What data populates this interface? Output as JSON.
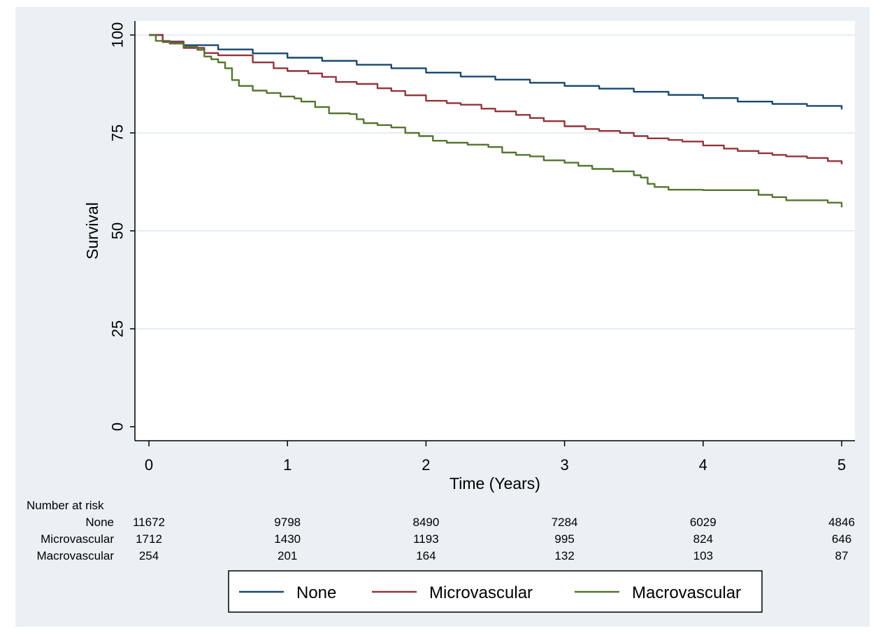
{
  "chart_data": {
    "type": "line",
    "step": true,
    "xlabel": "Time (Years)",
    "ylabel": "Survival",
    "xlim": [
      0,
      5
    ],
    "ylim": [
      0,
      100
    ],
    "x_ticks": [
      "0",
      "1",
      "2",
      "3",
      "4",
      "5"
    ],
    "y_ticks": [
      "0",
      "25",
      "50",
      "75",
      "100"
    ],
    "grid": "horizontal",
    "colors": {
      "outer_background": "#eaf0f3",
      "plot_background": "#ffffff",
      "gridline": "#e6eef2"
    },
    "series": [
      {
        "name": "None",
        "color": "#1a476f",
        "points": [
          [
            0,
            100
          ],
          [
            0.1,
            98.3
          ],
          [
            0.25,
            97.4
          ],
          [
            0.5,
            96.3
          ],
          [
            0.75,
            95.3
          ],
          [
            1,
            94.2
          ],
          [
            1.25,
            93.4
          ],
          [
            1.5,
            92.4
          ],
          [
            1.75,
            91.5
          ],
          [
            2,
            90.4
          ],
          [
            2.25,
            89.4
          ],
          [
            2.5,
            88.6
          ],
          [
            2.75,
            87.8
          ],
          [
            3,
            87.0
          ],
          [
            3.25,
            86.3
          ],
          [
            3.5,
            85.5
          ],
          [
            3.75,
            84.7
          ],
          [
            4,
            83.9
          ],
          [
            4.25,
            83.0
          ],
          [
            4.5,
            82.4
          ],
          [
            4.75,
            81.9
          ],
          [
            5,
            81.0
          ]
        ]
      },
      {
        "name": "Microvascular",
        "color": "#90353b",
        "points": [
          [
            0,
            100
          ],
          [
            0.1,
            98.2
          ],
          [
            0.25,
            96.7
          ],
          [
            0.4,
            95.4
          ],
          [
            0.5,
            94.8
          ],
          [
            0.75,
            93.0
          ],
          [
            0.9,
            91.5
          ],
          [
            1,
            90.8
          ],
          [
            1.15,
            90.2
          ],
          [
            1.25,
            89.3
          ],
          [
            1.35,
            88.0
          ],
          [
            1.5,
            87.5
          ],
          [
            1.65,
            86.4
          ],
          [
            1.75,
            85.7
          ],
          [
            1.85,
            84.6
          ],
          [
            2,
            83.2
          ],
          [
            2.15,
            82.6
          ],
          [
            2.25,
            82.2
          ],
          [
            2.4,
            81.2
          ],
          [
            2.5,
            80.5
          ],
          [
            2.65,
            79.6
          ],
          [
            2.75,
            78.8
          ],
          [
            2.85,
            78.0
          ],
          [
            3,
            76.7
          ],
          [
            3.15,
            76.0
          ],
          [
            3.25,
            75.5
          ],
          [
            3.4,
            75.0
          ],
          [
            3.5,
            74.2
          ],
          [
            3.6,
            73.6
          ],
          [
            3.75,
            73.2
          ],
          [
            3.85,
            72.8
          ],
          [
            4,
            71.8
          ],
          [
            4.15,
            71.0
          ],
          [
            4.25,
            70.4
          ],
          [
            4.4,
            69.8
          ],
          [
            4.5,
            69.4
          ],
          [
            4.6,
            69.0
          ],
          [
            4.75,
            68.6
          ],
          [
            4.9,
            67.8
          ],
          [
            5,
            67.0
          ]
        ]
      },
      {
        "name": "Macrovascular",
        "color": "#55752f",
        "points": [
          [
            0,
            100
          ],
          [
            0.05,
            98.5
          ],
          [
            0.15,
            97.8
          ],
          [
            0.25,
            97.0
          ],
          [
            0.35,
            96.2
          ],
          [
            0.4,
            94.5
          ],
          [
            0.45,
            93.8
          ],
          [
            0.5,
            93.0
          ],
          [
            0.55,
            91.5
          ],
          [
            0.6,
            88.5
          ],
          [
            0.65,
            87.0
          ],
          [
            0.75,
            85.8
          ],
          [
            0.85,
            85.2
          ],
          [
            0.95,
            84.3
          ],
          [
            1.05,
            83.8
          ],
          [
            1.1,
            83.0
          ],
          [
            1.2,
            81.6
          ],
          [
            1.3,
            80.0
          ],
          [
            1.45,
            79.8
          ],
          [
            1.5,
            78.5
          ],
          [
            1.55,
            77.5
          ],
          [
            1.65,
            77.0
          ],
          [
            1.75,
            76.4
          ],
          [
            1.85,
            75.0
          ],
          [
            1.95,
            74.2
          ],
          [
            2.05,
            73.0
          ],
          [
            2.15,
            72.5
          ],
          [
            2.3,
            72.0
          ],
          [
            2.45,
            71.4
          ],
          [
            2.55,
            70.0
          ],
          [
            2.65,
            69.4
          ],
          [
            2.75,
            69.0
          ],
          [
            2.85,
            68.0
          ],
          [
            3,
            67.4
          ],
          [
            3.1,
            66.6
          ],
          [
            3.2,
            65.8
          ],
          [
            3.35,
            65.2
          ],
          [
            3.5,
            64.2
          ],
          [
            3.55,
            63.6
          ],
          [
            3.6,
            62.0
          ],
          [
            3.65,
            61.2
          ],
          [
            3.75,
            60.5
          ],
          [
            4,
            60.4
          ],
          [
            4.3,
            60.4
          ],
          [
            4.4,
            59.2
          ],
          [
            4.5,
            58.6
          ],
          [
            4.6,
            57.8
          ],
          [
            4.8,
            57.8
          ],
          [
            4.9,
            57.2
          ],
          [
            5,
            56.0
          ]
        ]
      }
    ],
    "risk_table": {
      "title": "Number at risk",
      "rows": [
        {
          "label": "None",
          "values": [
            "11672",
            "9798",
            "8490",
            "7284",
            "6029",
            "4846"
          ]
        },
        {
          "label": "Microvascular",
          "values": [
            "1712",
            "1430",
            "1193",
            "995",
            "824",
            "646"
          ]
        },
        {
          "label": "Macrovascular",
          "values": [
            "254",
            "201",
            "164",
            "132",
            "103",
            "87"
          ]
        }
      ]
    },
    "legend": {
      "placement": "bottom",
      "entries": [
        "None",
        "Microvascular",
        "Macrovascular"
      ]
    }
  }
}
